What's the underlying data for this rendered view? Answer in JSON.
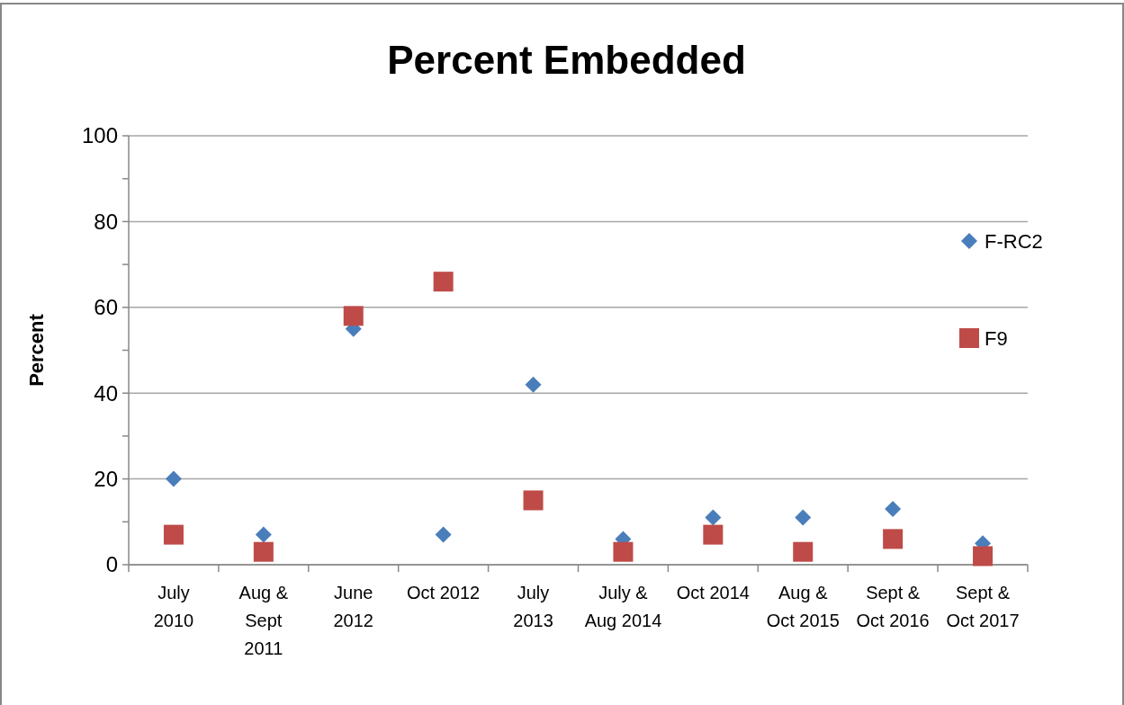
{
  "chart_data": {
    "type": "scatter",
    "title": "Percent Embedded",
    "ylabel": "Percent",
    "categories": [
      "July 2010",
      "Aug & Sept 2011",
      "June 2012",
      "Oct 2012",
      "July 2013",
      "July & Aug 2014",
      "Oct 2014",
      "Aug & Oct 2015",
      "Sept & Oct 2016",
      "Sept & Oct 2017"
    ],
    "series": [
      {
        "name": "F-RC2",
        "color": "#4a7ebb",
        "marker": "diamond",
        "values": [
          20,
          7,
          55,
          7,
          42,
          6,
          11,
          11,
          13,
          5
        ]
      },
      {
        "name": "F9",
        "color": "#be4b48",
        "marker": "square",
        "values": [
          7,
          3,
          58,
          66,
          15,
          3,
          7,
          3,
          6,
          2
        ]
      }
    ],
    "ylim": [
      0,
      100
    ],
    "yticks": [
      0,
      {
        "value": 10,
        "label": null
      },
      20,
      {
        "value": 30,
        "label": null
      },
      40,
      {
        "value": 50,
        "label": null
      },
      60,
      {
        "value": 70,
        "label": null
      },
      80,
      {
        "value": 90,
        "label": null
      },
      100
    ],
    "grid": "y",
    "legend": "right"
  }
}
